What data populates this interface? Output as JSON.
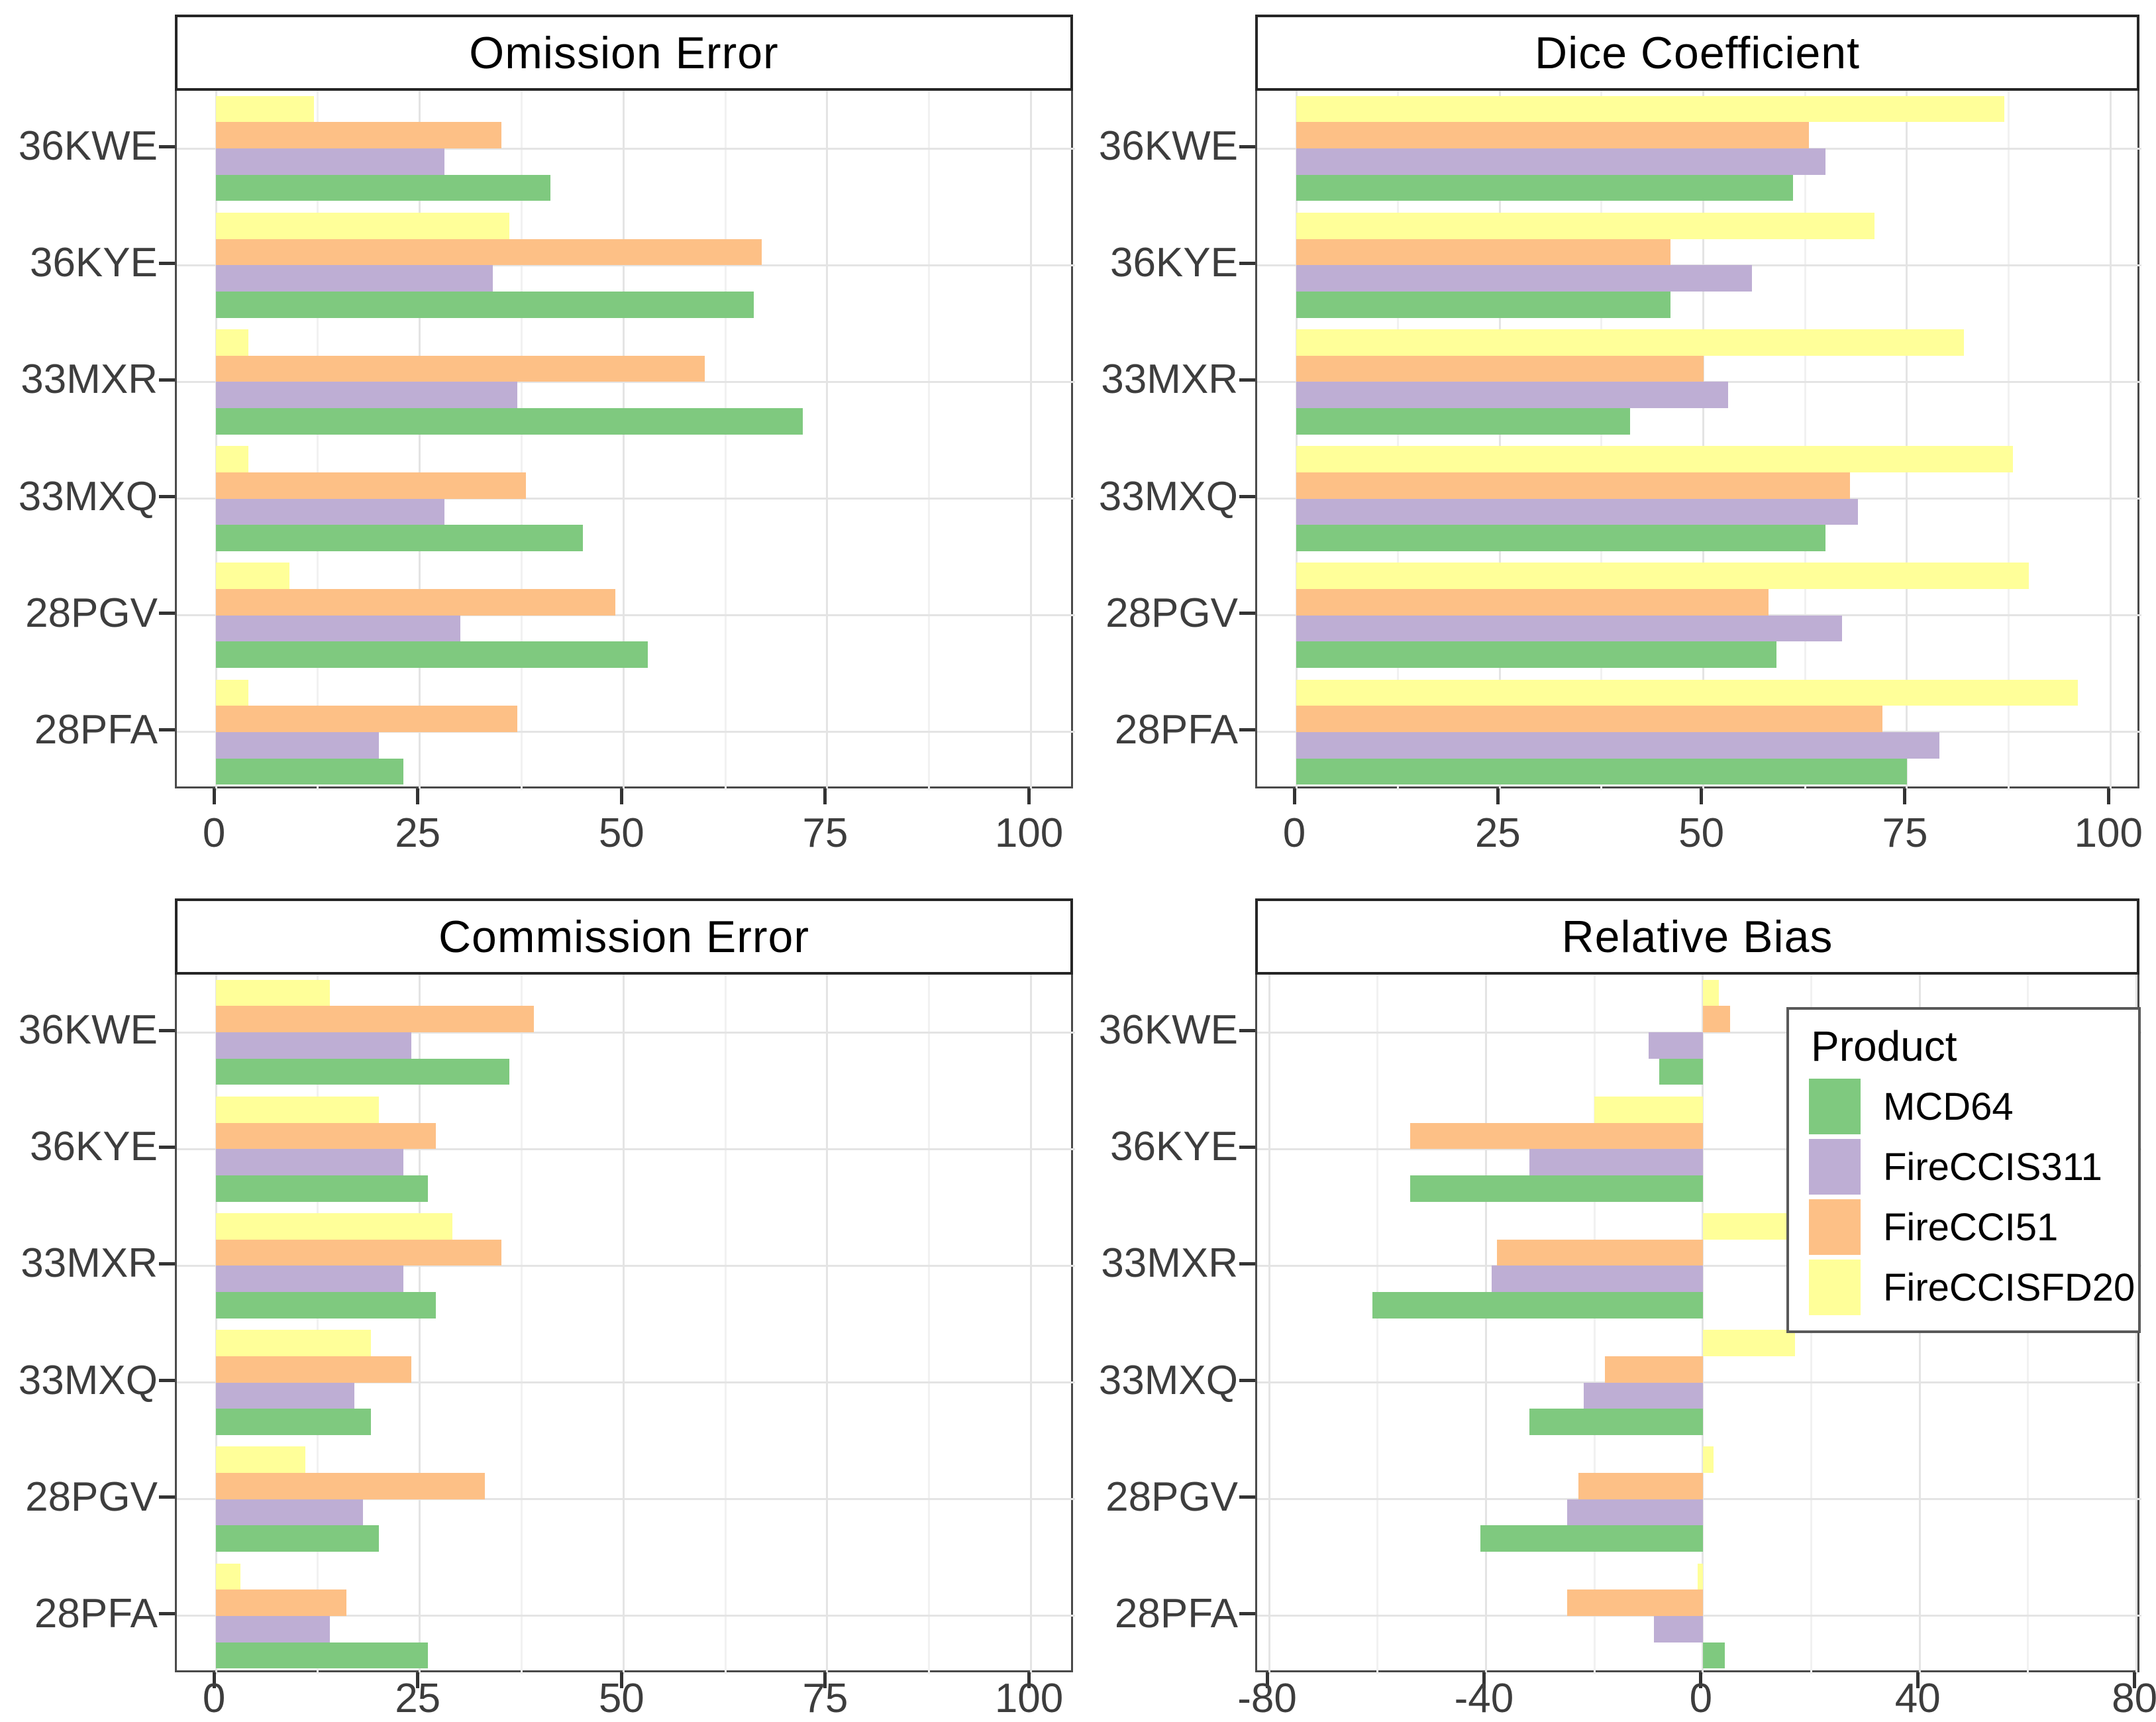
{
  "figure": {
    "background": "#ffffff"
  },
  "product_legend": {
    "title": "Product",
    "items": [
      {
        "label": "MCD64",
        "color": "#7FC97F"
      },
      {
        "label": "FireCCIS311",
        "color": "#BEAED4"
      },
      {
        "label": "FireCCI51",
        "color": "#FDC086"
      },
      {
        "label": "FireCCISFD20",
        "color": "#FFFF99"
      }
    ]
  },
  "chart_data": [
    {
      "type": "bar",
      "orientation": "horizontal",
      "title": "Omission Error",
      "categories": [
        "36KWE",
        "36KYE",
        "33MXR",
        "33MXQ",
        "28PGV",
        "28PFA"
      ],
      "series": [
        {
          "name": "MCD64",
          "color": "#7FC97F",
          "values": [
            41,
            66,
            72,
            45,
            53,
            23
          ]
        },
        {
          "name": "FireCCIS311",
          "color": "#BEAED4",
          "values": [
            28,
            34,
            37,
            28,
            30,
            20
          ]
        },
        {
          "name": "FireCCI51",
          "color": "#FDC086",
          "values": [
            35,
            67,
            60,
            38,
            49,
            37
          ]
        },
        {
          "name": "FireCCISFD20",
          "color": "#FFFF99",
          "values": [
            12,
            36,
            4,
            4,
            9,
            4
          ]
        }
      ],
      "xticks": [
        0,
        25,
        50,
        75,
        100
      ],
      "minor_xticks": [
        12.5,
        37.5,
        62.5,
        87.5
      ],
      "xlim": [
        -4.8,
        105.4
      ],
      "grid": true,
      "legend": false
    },
    {
      "type": "bar",
      "orientation": "horizontal",
      "title": "Dice Coefficient",
      "categories": [
        "36KWE",
        "36KYE",
        "33MXR",
        "33MXQ",
        "28PGV",
        "28PFA"
      ],
      "series": [
        {
          "name": "MCD64",
          "color": "#7FC97F",
          "values": [
            61,
            46,
            41,
            65,
            59,
            75
          ]
        },
        {
          "name": "FireCCIS311",
          "color": "#BEAED4",
          "values": [
            65,
            56,
            53,
            69,
            67,
            79
          ]
        },
        {
          "name": "FireCCI51",
          "color": "#FDC086",
          "values": [
            63,
            46,
            50,
            68,
            58,
            72
          ]
        },
        {
          "name": "FireCCISFD20",
          "color": "#FFFF99",
          "values": [
            87,
            71,
            82,
            88,
            90,
            96
          ]
        }
      ],
      "xticks": [
        0,
        25,
        50,
        75,
        100
      ],
      "minor_xticks": [
        12.5,
        37.5,
        62.5,
        87.5
      ],
      "xlim": [
        -4.8,
        103.8
      ],
      "grid": true,
      "legend": false
    },
    {
      "type": "bar",
      "orientation": "horizontal",
      "title": "Commission Error",
      "categories": [
        "36KWE",
        "36KYE",
        "33MXR",
        "33MXQ",
        "28PGV",
        "28PFA"
      ],
      "series": [
        {
          "name": "MCD64",
          "color": "#7FC97F",
          "values": [
            36,
            26,
            27,
            19,
            20,
            26
          ]
        },
        {
          "name": "FireCCIS311",
          "color": "#BEAED4",
          "values": [
            24,
            23,
            23,
            17,
            18,
            14
          ]
        },
        {
          "name": "FireCCI51",
          "color": "#FDC086",
          "values": [
            39,
            27,
            35,
            24,
            33,
            16
          ]
        },
        {
          "name": "FireCCISFD20",
          "color": "#FFFF99",
          "values": [
            14,
            20,
            29,
            19,
            11,
            3
          ]
        }
      ],
      "xticks": [
        0,
        25,
        50,
        75,
        100
      ],
      "minor_xticks": [
        12.5,
        37.5,
        62.5,
        87.5
      ],
      "xlim": [
        -4.8,
        105.4
      ],
      "grid": true,
      "legend": false
    },
    {
      "type": "bar",
      "orientation": "horizontal",
      "title": "Relative Bias",
      "categories": [
        "36KWE",
        "36KYE",
        "33MXR",
        "33MXQ",
        "28PGV",
        "28PFA"
      ],
      "series": [
        {
          "name": "MCD64",
          "color": "#7FC97F",
          "values": [
            -8,
            -54,
            -61,
            -32,
            -41,
            4
          ]
        },
        {
          "name": "FireCCIS311",
          "color": "#BEAED4",
          "values": [
            -10,
            -32,
            -39,
            -22,
            -25,
            -9
          ]
        },
        {
          "name": "FireCCI51",
          "color": "#FDC086",
          "values": [
            5,
            -54,
            -38,
            -18,
            -23,
            -25
          ]
        },
        {
          "name": "FireCCISFD20",
          "color": "#FFFF99",
          "values": [
            3,
            -20,
            33,
            17,
            2,
            -1
          ]
        }
      ],
      "xticks": [
        -80,
        -40,
        0,
        40,
        80
      ],
      "minor_xticks": [
        -60,
        -20,
        20,
        60
      ],
      "xlim": [
        -82.2,
        80.9
      ],
      "grid": true,
      "legend": true
    }
  ]
}
